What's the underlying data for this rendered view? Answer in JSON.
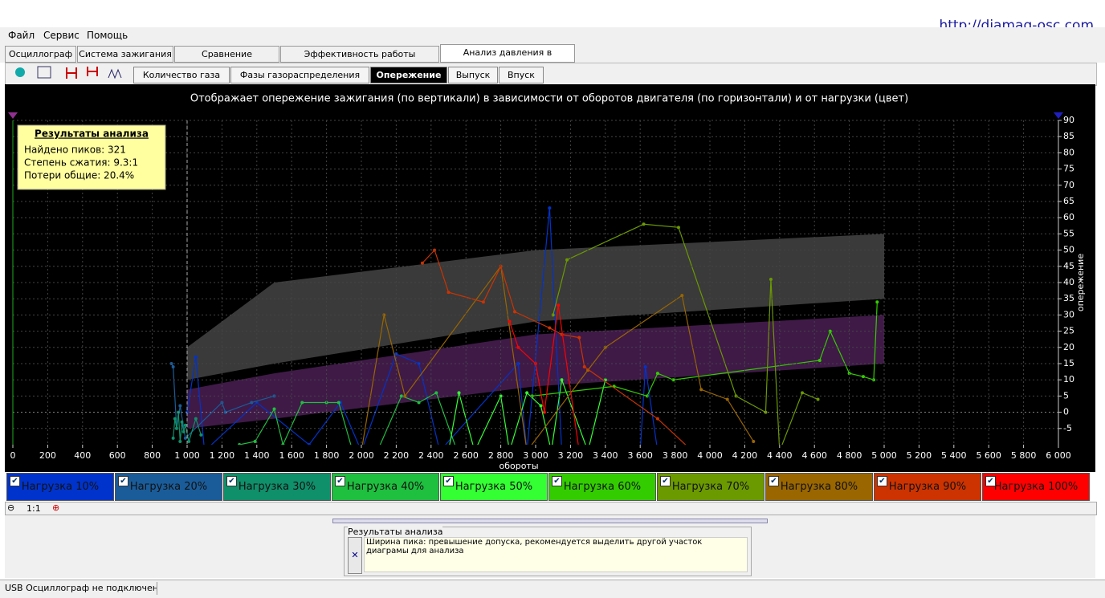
{
  "menu": [
    "Файл",
    "Сервис",
    "Помощь"
  ],
  "url": "http://diamag-osc.com",
  "tabs": [
    "Осциллограф",
    "Система зажигания",
    "Сравнение цилиндров",
    "Эффективность работы цилиндров",
    "Анализ давления в цилиндре"
  ],
  "sub_tabs": [
    "Количество газа",
    "Фазы газораспределения",
    "Опережение",
    "Выпуск",
    "Впуск"
  ],
  "zoom_label": "1:1",
  "analysis_panel": {
    "title": "Результаты анализа",
    "message": "Ширина пика: превышение допуска, рекомендуется выделить другой участок диаграмы для анализа"
  },
  "status": "USB Осциллограф не подключен",
  "chart_data": {
    "type": "line",
    "title": "Отображает опережение зажигания (по вертикали) в зависимости от оборотов двигателя (по горизонтали) и от нагрузки (цвет)",
    "x_label": "обороты",
    "y_label": "опережение",
    "xlim": [
      0,
      6000
    ],
    "xticks": [
      0,
      200,
      400,
      600,
      800,
      {
        "value": 1000,
        "label": "1 000"
      },
      {
        "value": 1200,
        "label": "1 200"
      },
      {
        "value": 1400,
        "label": "1 400"
      },
      {
        "value": 1600,
        "label": "1 600"
      },
      {
        "value": 1800,
        "label": "1 800"
      },
      {
        "value": 2000,
        "label": "2 000"
      },
      {
        "value": 2200,
        "label": "2 200"
      },
      {
        "value": 2400,
        "label": "2 400"
      },
      {
        "value": 2600,
        "label": "2 600"
      },
      {
        "value": 2800,
        "label": "2 800"
      },
      {
        "value": 3000,
        "label": "3 000"
      },
      {
        "value": 3200,
        "label": "3 200"
      },
      {
        "value": 3400,
        "label": "3 400"
      },
      {
        "value": 3600,
        "label": "3 600"
      },
      {
        "value": 3800,
        "label": "3 800"
      },
      {
        "value": 4000,
        "label": "4 000"
      },
      {
        "value": 4200,
        "label": "4 200"
      },
      {
        "value": 4400,
        "label": "4 400"
      },
      {
        "value": 4600,
        "label": "4 600"
      },
      {
        "value": 4800,
        "label": "4 800"
      },
      {
        "value": 5000,
        "label": "5 000"
      },
      {
        "value": 5200,
        "label": "5 200"
      },
      {
        "value": 5400,
        "label": "5 400"
      },
      {
        "value": 5600,
        "label": "5 600"
      },
      {
        "value": 5800,
        "label": "5 800"
      },
      {
        "value": 6000,
        "label": "6 000"
      }
    ],
    "ylim": [
      -10,
      90
    ],
    "yticks": [
      -5,
      0,
      5,
      10,
      15,
      20,
      25,
      30,
      35,
      40,
      45,
      50,
      55,
      60,
      65,
      70,
      75,
      80,
      85,
      90
    ],
    "grid": true,
    "cursor_x": 1000,
    "bands": [
      {
        "color": "#3a3a3a",
        "x": [
          1000,
          1500,
          3000,
          5000
        ],
        "upper": [
          20,
          40,
          50,
          55
        ],
        "lower": [
          10,
          15,
          28,
          35
        ]
      },
      {
        "color": "#3f1a47",
        "x": [
          1000,
          1500,
          3000,
          5000
        ],
        "upper": [
          7,
          12,
          24,
          30
        ],
        "lower": [
          -5,
          -2,
          8,
          15
        ]
      }
    ],
    "info_box": {
      "title": "Результаты анализа",
      "lines": [
        "Найдено пиков: 321",
        "Степень сжатия: 9.3:1",
        "Потери общие: 20.4%"
      ]
    },
    "series": [
      {
        "name": "Нагрузка 10%",
        "color": "#0033cc",
        "x": [
          1000,
          1050,
          1100,
          1400,
          1700,
          1880,
          2000,
          2200,
          2330,
          2450,
          2900,
          2950,
          3080,
          3150,
          3600,
          3630,
          3700
        ],
        "values": [
          0,
          17,
          -12,
          3,
          -10,
          3,
          -12,
          18,
          15,
          -12,
          15,
          -12,
          63,
          -12,
          -12,
          14,
          -12
        ]
      },
      {
        "name": "Нагрузка 20%",
        "color": "#1a5c99",
        "x": [
          910,
          920,
          940,
          960,
          990,
          1200,
          1220,
          1370,
          1500
        ],
        "values": [
          15,
          14,
          -5,
          2,
          -8,
          3,
          0,
          3,
          5
        ]
      },
      {
        "name": "Нагрузка 30%",
        "color": "#0f8f6a",
        "x": [
          920,
          930,
          940,
          950,
          960,
          970,
          980,
          990,
          1010,
          1050,
          1080
        ],
        "values": [
          -8,
          -2,
          -5,
          0,
          -9,
          -3,
          -6,
          -4,
          -9,
          -2,
          -7
        ]
      },
      {
        "name": "Нагрузка 40%",
        "color": "#1fbf3f",
        "x": [
          1300,
          1390,
          1500,
          1550,
          1660,
          1800,
          1870,
          1950,
          2100,
          2230,
          2330,
          2430,
          2550
        ],
        "values": [
          -10,
          -9,
          1,
          -10,
          3,
          3,
          3,
          -12,
          -11,
          5,
          3,
          6,
          -12
        ]
      },
      {
        "name": "Нагрузка 50%",
        "color": "#33ff33",
        "x": [
          2500,
          2560,
          2650,
          2800,
          2850,
          2950,
          3030,
          3090,
          3150,
          3300,
          3400
        ],
        "values": [
          -12,
          6,
          -12,
          5,
          -12,
          6,
          2,
          -12,
          10,
          -12,
          10
        ]
      },
      {
        "name": "Нагрузка 60%",
        "color": "#33cc00",
        "x": [
          2980,
          3450,
          3640,
          3700,
          3790,
          4630,
          4690,
          4800,
          4880,
          4940,
          4960
        ],
        "values": [
          5,
          8,
          5,
          12,
          10,
          16,
          25,
          12,
          11,
          10,
          34
        ]
      },
      {
        "name": "Нагрузка 70%",
        "color": "#6b9900",
        "x": [
          3100,
          3180,
          3620,
          3820,
          4150,
          4320,
          4350,
          4400,
          4530,
          4620
        ],
        "values": [
          30,
          47,
          58,
          57,
          5,
          0,
          41,
          -12,
          6,
          4
        ]
      },
      {
        "name": "Нагрузка 80%",
        "color": "#996600",
        "x": [
          2000,
          2130,
          2250,
          2800,
          2950,
          3300,
          3400,
          3840,
          3950,
          4100,
          4250
        ],
        "values": [
          -12,
          30,
          5,
          45,
          -12,
          13,
          20,
          36,
          7,
          4,
          -9
        ]
      },
      {
        "name": "Нагрузка 90%",
        "color": "#cc3300",
        "x": [
          2350,
          2420,
          2500,
          2700,
          2800,
          2880,
          3080,
          3150,
          3250,
          3280,
          3700,
          3880,
          4000
        ],
        "values": [
          46,
          50,
          37,
          34,
          45,
          31,
          26,
          24,
          23,
          14,
          -2,
          -11,
          -12
        ]
      },
      {
        "name": "Нагрузка 100%",
        "color": "#ff0000",
        "x": [
          2850,
          2900,
          3000,
          3050,
          3130,
          3250
        ],
        "values": [
          28,
          20,
          15,
          0,
          33,
          -12
        ]
      }
    ]
  }
}
